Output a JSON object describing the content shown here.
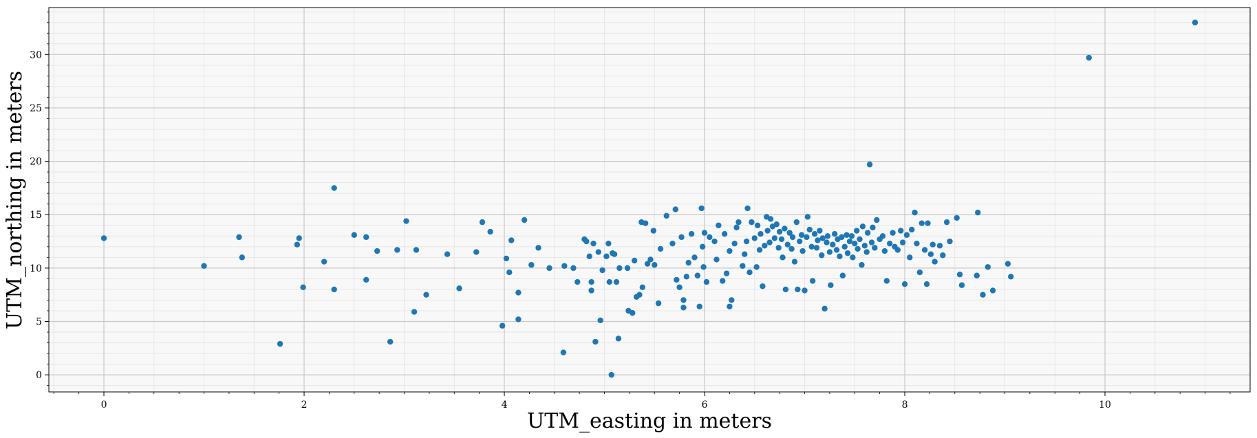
{
  "chart_data": {
    "type": "scatter",
    "title": "",
    "xlabel": "UTM_easting in meters",
    "ylabel": "UTM_northing in meters",
    "xlim": [
      -0.55,
      11.45
    ],
    "ylim": [
      -1.6,
      34.4
    ],
    "xticks": [
      0,
      2,
      4,
      6,
      8,
      10
    ],
    "yticks": [
      0,
      5,
      10,
      15,
      20,
      25,
      30
    ],
    "grid": true,
    "minor_grid": true,
    "colors": {
      "marker": "#1f77b4",
      "plot_background": "#f8f8f8",
      "major_grid": "#c8c8c8",
      "minor_grid": "#e6e6e6"
    },
    "series": [
      {
        "points": [
          [
            0.0,
            12.8
          ],
          [
            1.0,
            10.2
          ],
          [
            1.35,
            12.9
          ],
          [
            1.38,
            11.0
          ],
          [
            1.76,
            2.9
          ],
          [
            1.93,
            12.2
          ],
          [
            1.95,
            12.8
          ],
          [
            1.99,
            8.2
          ],
          [
            2.2,
            10.6
          ],
          [
            2.3,
            17.5
          ],
          [
            2.3,
            8.0
          ],
          [
            2.5,
            13.1
          ],
          [
            2.62,
            12.9
          ],
          [
            2.62,
            8.9
          ],
          [
            2.73,
            11.6
          ],
          [
            2.86,
            3.1
          ],
          [
            2.93,
            11.7
          ],
          [
            3.02,
            14.4
          ],
          [
            3.1,
            5.9
          ],
          [
            3.12,
            11.7
          ],
          [
            3.22,
            7.5
          ],
          [
            3.43,
            11.3
          ],
          [
            3.55,
            8.1
          ],
          [
            3.72,
            11.5
          ],
          [
            3.78,
            14.3
          ],
          [
            3.86,
            13.4
          ],
          [
            3.98,
            4.6
          ],
          [
            4.02,
            10.9
          ],
          [
            4.05,
            9.6
          ],
          [
            4.07,
            12.6
          ],
          [
            4.14,
            7.7
          ],
          [
            4.14,
            5.2
          ],
          [
            4.2,
            14.5
          ],
          [
            4.27,
            10.3
          ],
          [
            4.34,
            11.9
          ],
          [
            4.45,
            10.0
          ],
          [
            4.59,
            2.1
          ],
          [
            4.6,
            10.2
          ],
          [
            4.69,
            10.0
          ],
          [
            4.73,
            8.7
          ],
          [
            4.8,
            12.7
          ],
          [
            4.82,
            12.5
          ],
          [
            4.85,
            11.1
          ],
          [
            4.87,
            7.9
          ],
          [
            4.87,
            8.7
          ],
          [
            4.89,
            12.3
          ],
          [
            4.91,
            3.1
          ],
          [
            4.94,
            11.5
          ],
          [
            4.96,
            5.1
          ],
          [
            4.98,
            9.8
          ],
          [
            5.02,
            11.1
          ],
          [
            5.04,
            12.3
          ],
          [
            5.05,
            8.7
          ],
          [
            5.07,
            0.0
          ],
          [
            5.08,
            11.4
          ],
          [
            5.1,
            11.3
          ],
          [
            5.12,
            8.7
          ],
          [
            5.14,
            3.4
          ],
          [
            5.15,
            10.0
          ],
          [
            5.23,
            10.0
          ],
          [
            5.24,
            6.0
          ],
          [
            5.28,
            5.8
          ],
          [
            5.3,
            10.7
          ],
          [
            5.32,
            7.3
          ],
          [
            5.35,
            7.5
          ],
          [
            5.37,
            14.3
          ],
          [
            5.38,
            8.2
          ],
          [
            5.41,
            14.2
          ],
          [
            5.43,
            10.4
          ],
          [
            5.46,
            10.8
          ],
          [
            5.49,
            13.5
          ],
          [
            5.5,
            10.3
          ],
          [
            5.54,
            6.7
          ],
          [
            5.56,
            11.8
          ],
          [
            5.62,
            14.9
          ],
          [
            5.68,
            12.3
          ],
          [
            5.71,
            15.5
          ],
          [
            5.72,
            8.9
          ],
          [
            5.75,
            8.2
          ],
          [
            5.77,
            12.9
          ],
          [
            5.79,
            7.0
          ],
          [
            5.79,
            6.3
          ],
          [
            5.82,
            9.2
          ],
          [
            5.84,
            10.5
          ],
          [
            5.87,
            13.2
          ],
          [
            5.9,
            11.0
          ],
          [
            5.93,
            9.3
          ],
          [
            5.95,
            6.4
          ],
          [
            5.97,
            15.6
          ],
          [
            5.98,
            12.0
          ],
          [
            5.99,
            10.1
          ],
          [
            6.0,
            13.3
          ],
          [
            6.02,
            8.7
          ],
          [
            6.05,
            12.9
          ],
          [
            6.1,
            12.5
          ],
          [
            6.12,
            10.8
          ],
          [
            6.14,
            14.0
          ],
          [
            6.18,
            8.8
          ],
          [
            6.2,
            13.2
          ],
          [
            6.22,
            9.5
          ],
          [
            6.25,
            11.6
          ],
          [
            6.25,
            6.4
          ],
          [
            6.27,
            7.0
          ],
          [
            6.3,
            12.3
          ],
          [
            6.32,
            13.8
          ],
          [
            6.34,
            14.3
          ],
          [
            6.38,
            10.2
          ],
          [
            6.4,
            11.3
          ],
          [
            6.42,
            12.5
          ],
          [
            6.43,
            15.6
          ],
          [
            6.45,
            9.6
          ],
          [
            6.47,
            14.3
          ],
          [
            6.5,
            12.8
          ],
          [
            6.52,
            10.1
          ],
          [
            6.53,
            14.0
          ],
          [
            6.55,
            11.7
          ],
          [
            6.56,
            13.2
          ],
          [
            6.58,
            8.3
          ],
          [
            6.6,
            12.1
          ],
          [
            6.62,
            14.8
          ],
          [
            6.63,
            13.5
          ],
          [
            6.65,
            12.4
          ],
          [
            6.66,
            14.6
          ],
          [
            6.68,
            13.9
          ],
          [
            6.7,
            12.8
          ],
          [
            6.72,
            14.1
          ],
          [
            6.74,
            11.9
          ],
          [
            6.75,
            13.4
          ],
          [
            6.77,
            12.7
          ],
          [
            6.78,
            11.0
          ],
          [
            6.8,
            13.7
          ],
          [
            6.81,
            8.0
          ],
          [
            6.83,
            12.2
          ],
          [
            6.85,
            13.3
          ],
          [
            6.87,
            11.8
          ],
          [
            6.88,
            12.9
          ],
          [
            6.9,
            10.6
          ],
          [
            6.92,
            14.3
          ],
          [
            6.93,
            8.0
          ],
          [
            6.95,
            12.5
          ],
          [
            6.97,
            13.1
          ],
          [
            6.98,
            11.6
          ],
          [
            7.0,
            7.9
          ],
          [
            7.02,
            12.9
          ],
          [
            7.03,
            14.8
          ],
          [
            7.05,
            13.6
          ],
          [
            7.07,
            12.0
          ],
          [
            7.08,
            8.8
          ],
          [
            7.1,
            13.2
          ],
          [
            7.12,
            11.9
          ],
          [
            7.13,
            12.6
          ],
          [
            7.15,
            13.5
          ],
          [
            7.17,
            11.2
          ],
          [
            7.18,
            12.8
          ],
          [
            7.2,
            6.2
          ],
          [
            7.22,
            12.4
          ],
          [
            7.23,
            13.0
          ],
          [
            7.25,
            11.5
          ],
          [
            7.26,
            8.4
          ],
          [
            7.28,
            12.2
          ],
          [
            7.3,
            13.2
          ],
          [
            7.32,
            11.7
          ],
          [
            7.33,
            12.7
          ],
          [
            7.35,
            11.1
          ],
          [
            7.37,
            12.9
          ],
          [
            7.38,
            9.3
          ],
          [
            7.4,
            12.0
          ],
          [
            7.42,
            13.1
          ],
          [
            7.43,
            11.4
          ],
          [
            7.45,
            12.5
          ],
          [
            7.47,
            13.0
          ],
          [
            7.48,
            11.0
          ],
          [
            7.5,
            12.3
          ],
          [
            7.52,
            13.5
          ],
          [
            7.53,
            11.8
          ],
          [
            7.55,
            12.7
          ],
          [
            7.57,
            10.3
          ],
          [
            7.58,
            13.9
          ],
          [
            7.6,
            12.1
          ],
          [
            7.62,
            11.5
          ],
          [
            7.63,
            13.3
          ],
          [
            7.65,
            19.7
          ],
          [
            7.67,
            12.4
          ],
          [
            7.68,
            13.8
          ],
          [
            7.7,
            11.9
          ],
          [
            7.72,
            14.5
          ],
          [
            7.75,
            12.7
          ],
          [
            7.78,
            13.0
          ],
          [
            7.8,
            11.6
          ],
          [
            7.82,
            8.8
          ],
          [
            7.85,
            12.3
          ],
          [
            7.88,
            13.3
          ],
          [
            7.9,
            12.0
          ],
          [
            7.93,
            11.7
          ],
          [
            7.96,
            13.5
          ],
          [
            7.98,
            12.4
          ],
          [
            8.0,
            8.5
          ],
          [
            8.02,
            13.1
          ],
          [
            8.05,
            11.0
          ],
          [
            8.07,
            13.6
          ],
          [
            8.1,
            15.2
          ],
          [
            8.12,
            12.3
          ],
          [
            8.15,
            9.6
          ],
          [
            8.17,
            14.2
          ],
          [
            8.2,
            11.7
          ],
          [
            8.22,
            8.5
          ],
          [
            8.23,
            14.2
          ],
          [
            8.26,
            11.3
          ],
          [
            8.28,
            12.2
          ],
          [
            8.3,
            10.6
          ],
          [
            8.35,
            12.1
          ],
          [
            8.38,
            11.2
          ],
          [
            8.42,
            14.3
          ],
          [
            8.45,
            12.5
          ],
          [
            8.52,
            14.7
          ],
          [
            8.55,
            9.4
          ],
          [
            8.57,
            8.4
          ],
          [
            8.72,
            9.3
          ],
          [
            8.73,
            15.2
          ],
          [
            8.78,
            7.5
          ],
          [
            8.83,
            10.1
          ],
          [
            8.88,
            7.9
          ],
          [
            9.03,
            10.4
          ],
          [
            9.06,
            9.2
          ],
          [
            9.84,
            29.7
          ],
          [
            10.9,
            33.0
          ]
        ]
      }
    ]
  }
}
